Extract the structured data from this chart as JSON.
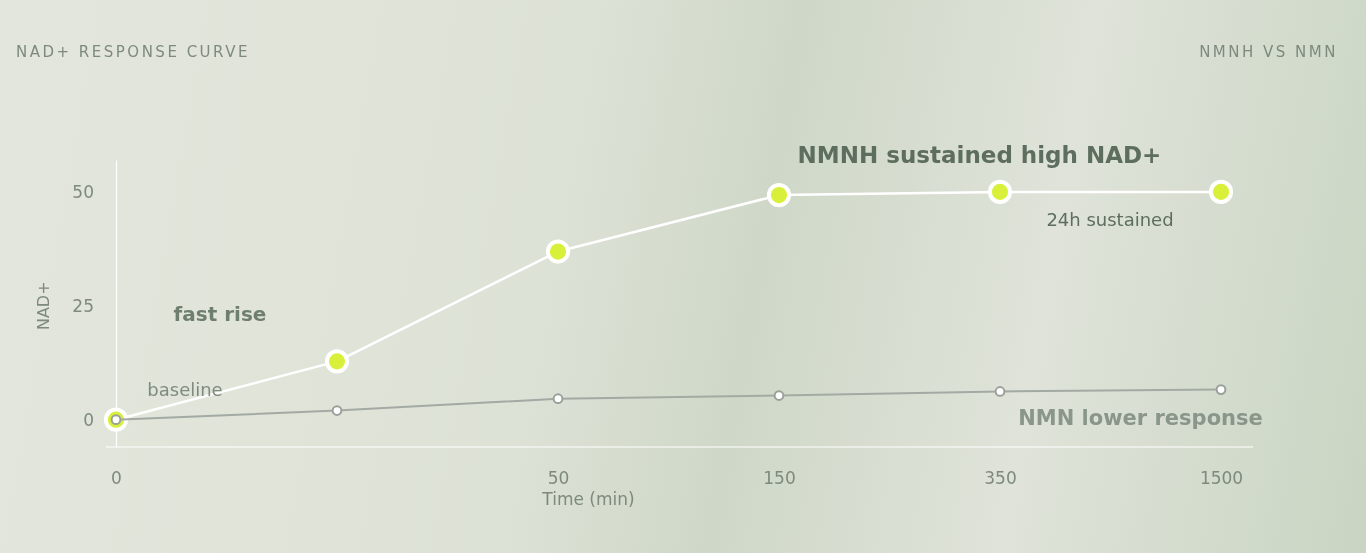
{
  "chart_data": {
    "type": "line",
    "title": "NAD+ RESPONSE CURVE",
    "subtitle": "NMNH VS NMN",
    "xlabel": "Time (min)",
    "ylabel": "NAD+",
    "categories": [
      "0",
      null,
      "50",
      "150",
      "350",
      "1500"
    ],
    "series": [
      {
        "name": "NMNH sustained high NAD+",
        "color": "#ffffff",
        "values": [
          0,
          12.8,
          36.9,
          49.3,
          50,
          50
        ]
      },
      {
        "name": "NMN lower response",
        "color": "#a3aaa3",
        "values": [
          0,
          2,
          4.6,
          5.3,
          6.2,
          6.6
        ]
      }
    ],
    "annotations": [
      "fast rise",
      "baseline",
      "24h sustained"
    ],
    "ylim": [
      -6,
      57
    ],
    "yticks": [
      0,
      25,
      50
    ],
    "grid": false,
    "legend": false,
    "marker": "circle",
    "line_style": "solid"
  }
}
